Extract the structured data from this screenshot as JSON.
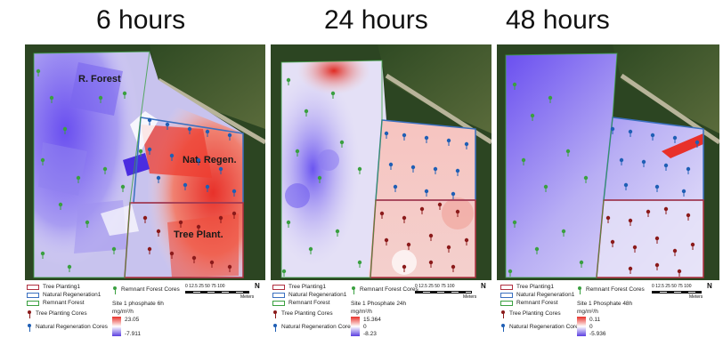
{
  "panels": [
    {
      "title": "6 hours",
      "labels": {
        "forest": "R. Forest",
        "regen": "Nat. Regen.",
        "planting": "Tree Plant."
      },
      "legend": {
        "tree_planting": "Tree Planting1",
        "natural_regeneration": "Natural Regeneration1",
        "remnant_forest": "Remnant Forest",
        "remnant_cores": "Remnant Forest Cores",
        "tree_cores": "Tree Planting Cores",
        "regen_cores": "Natural Regeneration Cores",
        "layer_name": "Site 1 phosphate 6h",
        "unit": "mg/m²/h",
        "max": "23.05",
        "min": "-7.911"
      },
      "scale": {
        "ticks": "0 12.5 25    50    75    100",
        "unit": "Meters"
      }
    },
    {
      "title": "24 hours",
      "legend": {
        "tree_planting": "Tree Planting1",
        "natural_regeneration": "Natural Regeneration1",
        "remnant_forest": "Remnant Forest",
        "remnant_cores": "Remnant Forest Cores",
        "tree_cores": "Tree Planting Cores",
        "regen_cores": "Natural Regeneration Cores",
        "layer_name": "Site 1 Phosphate 24h",
        "unit": "mg/m²/h",
        "max": "15.364",
        "mid": "0",
        "min": "-8.23"
      },
      "scale": {
        "ticks": "0 12.5 25    50    75    100",
        "unit": "Meters"
      }
    },
    {
      "title": "48 hours",
      "legend": {
        "tree_planting": "Tree Planting1",
        "natural_regeneration": "Natural Regeneration1",
        "remnant_forest": "Remnant Forest",
        "remnant_cores": "Remnant Forest Cores",
        "tree_cores": "Tree Planting Cores",
        "regen_cores": "Natural Regeneration Cores",
        "layer_name": "Site 1 Phosphate 48h",
        "unit": "mg/m²/h",
        "max": "0.11",
        "mid": "0",
        "min": "-5.936"
      },
      "scale": {
        "ticks": "0 12.5 25    50    75    100",
        "unit": "Meters"
      }
    }
  ],
  "north_label": "N",
  "colors": {
    "tree_planting_outline": "#b03040",
    "natural_regeneration_outline": "#3a6fc0",
    "remnant_forest_outline": "#3aa040",
    "tree_core_pin": "#8b1a1a",
    "regen_core_pin": "#1f5fb5",
    "remnant_core_pin": "#3aa040",
    "high": "#e8312a",
    "low": "#5b3fe0"
  }
}
